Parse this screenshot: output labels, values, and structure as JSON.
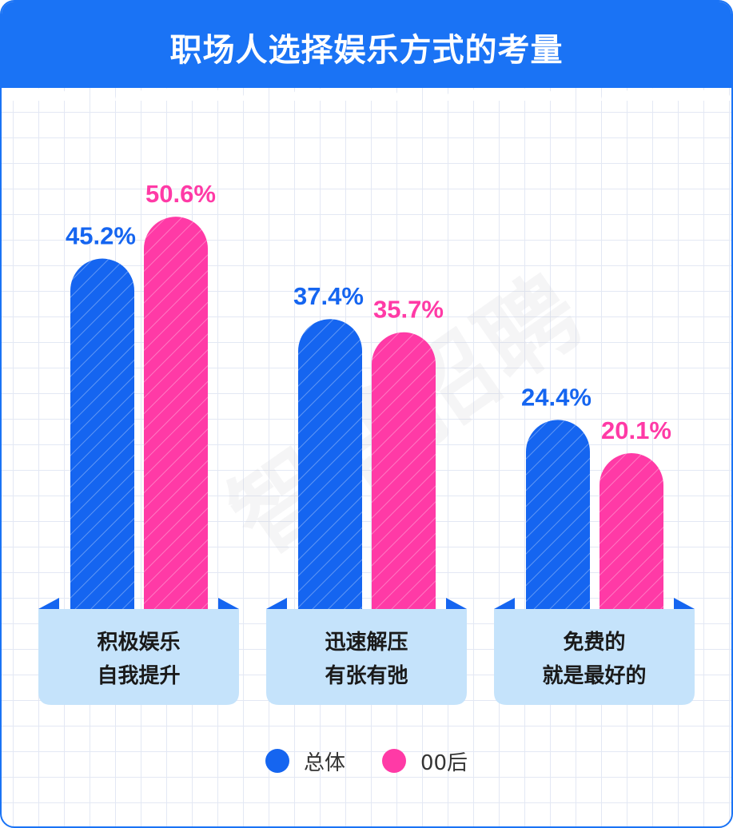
{
  "title": "职场人选择娱乐方式的考量",
  "watermark": "智联招聘",
  "colors": {
    "header": "#1a73f5",
    "series_total": "#1565f0",
    "series_00": "#ff3aa6",
    "category_box": "#c5e3fb",
    "category_fold": "#1565f0"
  },
  "legend": [
    {
      "name": "总体",
      "color": "#1565f0"
    },
    {
      "name": "00后",
      "color": "#ff3aa6"
    }
  ],
  "chart_data": {
    "type": "bar",
    "title": "职场人选择娱乐方式的考量",
    "categories": [
      [
        "积极娱乐",
        "自我提升"
      ],
      [
        "迅速解压",
        "有张有弛"
      ],
      [
        "免费的",
        "就是最好的"
      ]
    ],
    "series": [
      {
        "name": "总体",
        "values": [
          45.2,
          37.4,
          24.4
        ],
        "labels": [
          "45.2%",
          "37.4%",
          "24.4%"
        ],
        "color": "#1565f0"
      },
      {
        "name": "00后",
        "values": [
          50.6,
          35.7,
          20.1
        ],
        "labels": [
          "50.6%",
          "35.7%",
          "20.1%"
        ],
        "color": "#ff3aa6"
      }
    ],
    "ylim": [
      0,
      100
    ],
    "grid": true,
    "legend_position": "bottom"
  }
}
